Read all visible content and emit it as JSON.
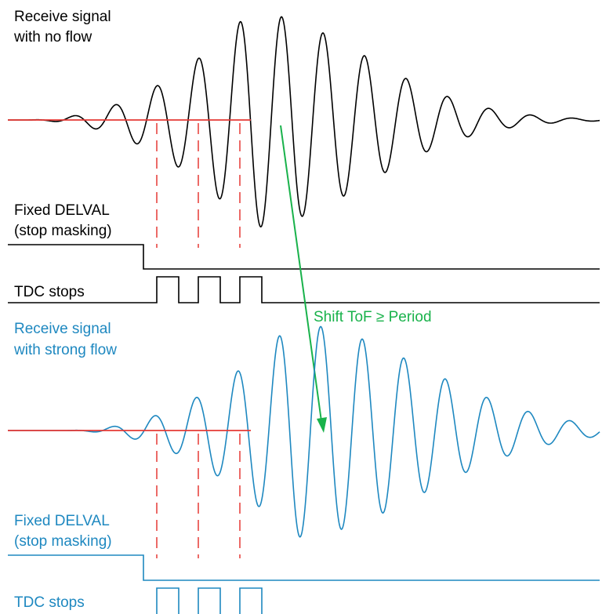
{
  "labels": {
    "top_signal_line1": "Receive signal",
    "top_signal_line2": "with no flow",
    "top_delval_line1": "Fixed DELVAL",
    "top_delval_line2": "(stop masking)",
    "top_tdc": "TDC stops",
    "bottom_signal_line1": "Receive signal",
    "bottom_signal_line2": "with strong flow",
    "bottom_delval_line1": "Fixed DELVAL",
    "bottom_delval_line2": "(stop masking)",
    "bottom_tdc": "TDC stops",
    "shift": "Shift ToF ≥ Period"
  },
  "colors": {
    "top_trace": "#000000",
    "bottom_trace": "#1e88c0",
    "bottom_text": "#1e88c0",
    "threshold": "#e53935",
    "stop_markers": "#e53935",
    "shift_arrow": "#19b24b"
  }
}
